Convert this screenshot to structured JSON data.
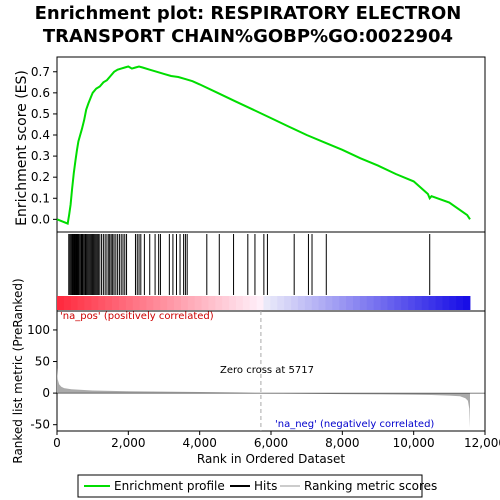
{
  "title_line1": "Enrichment plot: RESPIRATORY ELECTRON",
  "title_line2": "TRANSPORT CHAIN%GOBP%GO:0022904",
  "colors": {
    "es_line": "#00dd00",
    "hit": "#000000",
    "metric_fill": "#aaaaaa",
    "zero_cross": "#aaaaaa"
  },
  "chart_data": [
    {
      "type": "line",
      "name": "enrichment-profile",
      "ylabel": "Enrichment score (ES)",
      "xlim": [
        0,
        12000
      ],
      "ylim": [
        -0.06,
        0.77
      ],
      "yticks": [
        "0.0",
        "0.1",
        "0.2",
        "0.3",
        "0.4",
        "0.5",
        "0.6",
        "0.7"
      ],
      "series": [
        {
          "name": "Enrichment profile",
          "x": [
            0,
            300,
            340,
            380,
            420,
            470,
            520,
            560,
            600,
            650,
            700,
            760,
            820,
            880,
            950,
            1000,
            1100,
            1200,
            1300,
            1400,
            1500,
            1600,
            1700,
            1800,
            1900,
            2000,
            2100,
            2200,
            2300,
            2400,
            2600,
            2800,
            3000,
            3200,
            3400,
            3600,
            3800,
            4000,
            4500,
            5000,
            5500,
            6000,
            6500,
            7000,
            7500,
            8000,
            8500,
            9000,
            9500,
            10000,
            10400,
            10450,
            10500,
            11000,
            11500,
            11580
          ],
          "values": [
            0.0,
            -0.02,
            0.02,
            0.07,
            0.14,
            0.22,
            0.28,
            0.33,
            0.37,
            0.4,
            0.43,
            0.47,
            0.52,
            0.55,
            0.58,
            0.6,
            0.62,
            0.63,
            0.65,
            0.66,
            0.68,
            0.7,
            0.71,
            0.715,
            0.72,
            0.725,
            0.715,
            0.72,
            0.725,
            0.72,
            0.71,
            0.7,
            0.69,
            0.68,
            0.675,
            0.665,
            0.655,
            0.64,
            0.6,
            0.56,
            0.52,
            0.48,
            0.44,
            0.4,
            0.365,
            0.33,
            0.29,
            0.255,
            0.215,
            0.18,
            0.12,
            0.1,
            0.11,
            0.08,
            0.02,
            0.0
          ]
        }
      ]
    },
    {
      "type": "scatter",
      "name": "hits",
      "x": [
        330,
        360,
        390,
        420,
        440,
        460,
        480,
        500,
        520,
        540,
        560,
        580,
        600,
        620,
        650,
        680,
        700,
        720,
        750,
        780,
        800,
        830,
        860,
        890,
        920,
        950,
        980,
        1010,
        1040,
        1070,
        1100,
        1130,
        1160,
        1200,
        1250,
        1300,
        1350,
        1400,
        1450,
        1480,
        1520,
        1560,
        1600,
        1650,
        1700,
        1750,
        1800,
        1850,
        1900,
        1950,
        2200,
        2250,
        2300,
        2350,
        2450,
        2600,
        2750,
        2850,
        2900,
        3150,
        3250,
        3350,
        3450,
        3550,
        3600,
        3650,
        4200,
        4550,
        4950,
        5350,
        5550,
        5800,
        5900,
        6650,
        7050,
        7150,
        7550,
        10450
      ]
    },
    {
      "type": "area",
      "name": "ranked-list-metric",
      "xlabel": "Rank in Ordered Dataset",
      "ylabel": "Ranked list metric (PreRanked)",
      "xlim": [
        0,
        12000
      ],
      "ylim": [
        -60,
        130
      ],
      "xticks": [
        "0",
        "2,000",
        "4,000",
        "6,000",
        "8,000",
        "10,000",
        "12,000"
      ],
      "yticks": [
        "-50",
        "0",
        "50",
        "100"
      ],
      "x": [
        0,
        20,
        60,
        120,
        200,
        400,
        700,
        1000,
        1500,
        2000,
        3000,
        4000,
        5000,
        5717,
        6000,
        7000,
        8000,
        9000,
        10000,
        10500,
        11000,
        11300,
        11450,
        11520,
        11560,
        11580
      ],
      "values": [
        40,
        22,
        14,
        10,
        8,
        6,
        5,
        4.2,
        3.5,
        3,
        2.4,
        1.8,
        1,
        0,
        -0.5,
        -1,
        -1.5,
        -2,
        -2.5,
        -3,
        -4,
        -5,
        -8,
        -12,
        -25,
        -55
      ]
    }
  ],
  "annotations": {
    "pos_label": "'na_pos' (positively correlated)",
    "neg_label": "'na_neg' (negatively correlated)",
    "zero_cross": "Zero cross at 5717",
    "zero_cross_x": 5717
  },
  "legend": {
    "items": [
      {
        "label": "Enrichment profile"
      },
      {
        "label": "Hits"
      },
      {
        "label": "Ranking metric scores"
      }
    ]
  }
}
